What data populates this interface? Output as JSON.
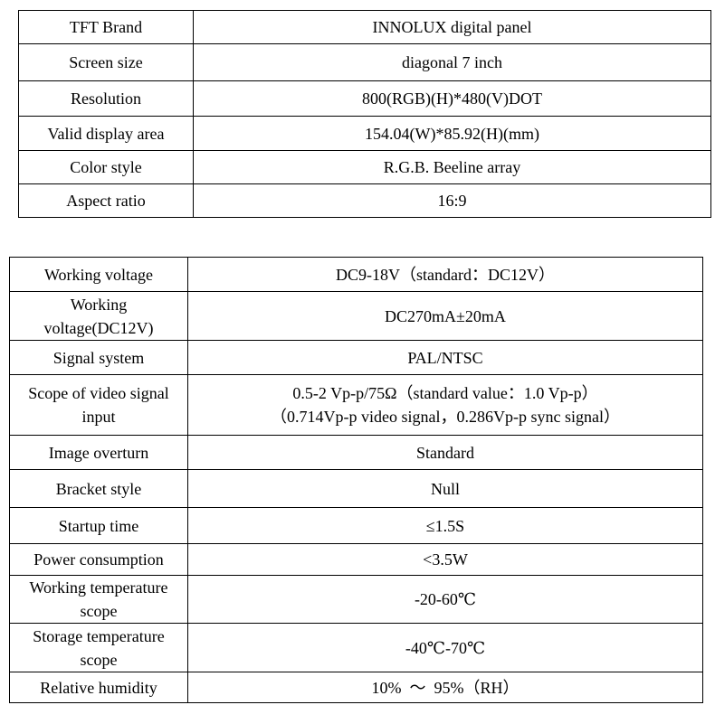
{
  "table1": {
    "rows": [
      {
        "label": "TFT Brand",
        "value": "INNOLUX digital panel"
      },
      {
        "label": "Screen size",
        "value": "diagonal 7 inch"
      },
      {
        "label": "Resolution",
        "value": "800(RGB)(H)*480(V)DOT"
      },
      {
        "label": "Valid display area",
        "value": "154.04(W)*85.92(H)(mm)"
      },
      {
        "label": "Color style",
        "value": "R.G.B. Beeline array"
      },
      {
        "label": "Aspect ratio",
        "value": "16:9"
      }
    ]
  },
  "table2": {
    "rows": [
      {
        "label": "Working voltage",
        "value": "DC9-18V（standard：DC12V）"
      },
      {
        "label_line1": "Working",
        "label_line2": "voltage(DC12V)",
        "value": "DC270mA±20mA"
      },
      {
        "label": "Signal system",
        "value": "PAL/NTSC"
      },
      {
        "label_line1": "Scope of video signal",
        "label_line2": "input",
        "value_line1": "0.5-2 Vp-p/75Ω（standard value：1.0 Vp-p）",
        "value_line2": "（0.714Vp-p video signal，0.286Vp-p sync signal）"
      },
      {
        "label": "Image overturn",
        "value": "Standard"
      },
      {
        "label": "Bracket style",
        "value": "Null"
      },
      {
        "label": "Startup time",
        "value": "≤1.5S"
      },
      {
        "label": "Power consumption",
        "value": "<3.5W"
      },
      {
        "label_line1": "Working temperature",
        "label_line2": "scope",
        "value": "-20-60℃"
      },
      {
        "label_line1": "Storage temperature",
        "label_line2": "scope",
        "value": "-40℃-70℃"
      },
      {
        "label": "Relative humidity",
        "value": "10%  ～  95%（RH）"
      }
    ]
  }
}
